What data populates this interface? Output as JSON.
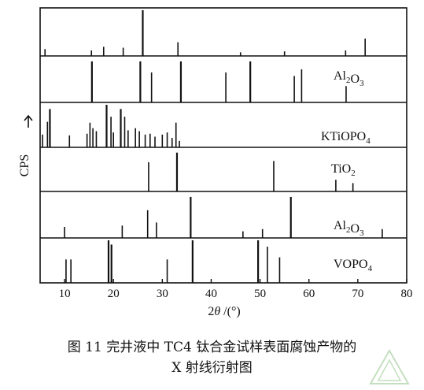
{
  "chart_data": {
    "type": "stick-pattern",
    "xlabel_pre": "2",
    "xlabel_theta": "θ",
    "xlabel_post": " /(°)",
    "ylabel": "CPS",
    "xlim": [
      5,
      80
    ],
    "x_ticks": [
      10,
      20,
      30,
      40,
      50,
      60,
      70,
      80
    ],
    "panels": [
      {
        "name": "",
        "peaks": [
          {
            "x": 6.0,
            "h": 0.15
          },
          {
            "x": 15.5,
            "h": 0.12
          },
          {
            "x": 18.0,
            "h": 0.2
          },
          {
            "x": 22.0,
            "h": 0.18
          },
          {
            "x": 26.0,
            "h": 1.0
          },
          {
            "x": 33.2,
            "h": 0.3
          },
          {
            "x": 46.0,
            "h": 0.08
          },
          {
            "x": 55.0,
            "h": 0.1
          },
          {
            "x": 67.5,
            "h": 0.12
          },
          {
            "x": 71.5,
            "h": 0.38
          }
        ]
      },
      {
        "name": "Al",
        "sub": "2",
        "name2": "O",
        "sub2": "3",
        "peaks": [
          {
            "x": 15.6,
            "h": 0.93
          },
          {
            "x": 25.5,
            "h": 0.93
          },
          {
            "x": 27.8,
            "h": 0.68
          },
          {
            "x": 33.8,
            "h": 0.93
          },
          {
            "x": 43.0,
            "h": 0.68
          },
          {
            "x": 48.0,
            "h": 0.93
          },
          {
            "x": 57.0,
            "h": 0.6
          },
          {
            "x": 58.5,
            "h": 0.75
          },
          {
            "x": 67.6,
            "h": 0.37
          }
        ]
      },
      {
        "name": "KTiOPO",
        "sub": "4",
        "peaks": [
          {
            "x": 5.5,
            "h": 0.3
          },
          {
            "x": 6.5,
            "h": 0.6
          },
          {
            "x": 7.0,
            "h": 0.9
          },
          {
            "x": 11.0,
            "h": 0.28
          },
          {
            "x": 14.6,
            "h": 0.32
          },
          {
            "x": 15.2,
            "h": 0.58
          },
          {
            "x": 15.8,
            "h": 0.45
          },
          {
            "x": 16.5,
            "h": 0.38
          },
          {
            "x": 18.6,
            "h": 1.0
          },
          {
            "x": 19.5,
            "h": 0.72
          },
          {
            "x": 20.0,
            "h": 0.35
          },
          {
            "x": 21.5,
            "h": 0.9
          },
          {
            "x": 22.3,
            "h": 0.72
          },
          {
            "x": 23.0,
            "h": 0.4
          },
          {
            "x": 24.5,
            "h": 0.45
          },
          {
            "x": 25.3,
            "h": 0.38
          },
          {
            "x": 26.5,
            "h": 0.3
          },
          {
            "x": 27.5,
            "h": 0.32
          },
          {
            "x": 28.5,
            "h": 0.25
          },
          {
            "x": 30.0,
            "h": 0.3
          },
          {
            "x": 31.0,
            "h": 0.35
          },
          {
            "x": 32.0,
            "h": 0.22
          },
          {
            "x": 32.8,
            "h": 0.58
          },
          {
            "x": 33.5,
            "h": 0.15
          }
        ]
      },
      {
        "name": "TiO",
        "sub": "2",
        "peaks": [
          {
            "x": 27.2,
            "h": 0.7
          },
          {
            "x": 33.0,
            "h": 0.93
          },
          {
            "x": 52.8,
            "h": 0.73
          },
          {
            "x": 65.5,
            "h": 0.28
          },
          {
            "x": 69.0,
            "h": 0.2
          }
        ]
      },
      {
        "name": "Al",
        "sub": "2",
        "name2": "O",
        "sub2": "3",
        "peaks": [
          {
            "x": 10.0,
            "h": 0.25
          },
          {
            "x": 21.8,
            "h": 0.28
          },
          {
            "x": 27.0,
            "h": 0.63
          },
          {
            "x": 28.8,
            "h": 0.35
          },
          {
            "x": 35.8,
            "h": 0.93
          },
          {
            "x": 46.5,
            "h": 0.15
          },
          {
            "x": 50.5,
            "h": 0.2
          },
          {
            "x": 56.3,
            "h": 0.93
          },
          {
            "x": 75.0,
            "h": 0.2
          }
        ]
      },
      {
        "name": "VOPO",
        "sub": "4",
        "peaks": [
          {
            "x": 10.3,
            "h": 0.55
          },
          {
            "x": 11.3,
            "h": 0.55
          },
          {
            "x": 19.0,
            "h": 1.0
          },
          {
            "x": 19.6,
            "h": 0.9
          },
          {
            "x": 31.0,
            "h": 0.55
          },
          {
            "x": 36.2,
            "h": 1.0
          },
          {
            "x": 49.6,
            "h": 1.0
          },
          {
            "x": 51.5,
            "h": 0.85
          },
          {
            "x": 54.0,
            "h": 0.6
          }
        ]
      }
    ]
  },
  "caption": {
    "line1": "图 11 完井液中 TC4 钛合金试样表面腐蚀产物的",
    "line2": "X 射线衍射图"
  }
}
